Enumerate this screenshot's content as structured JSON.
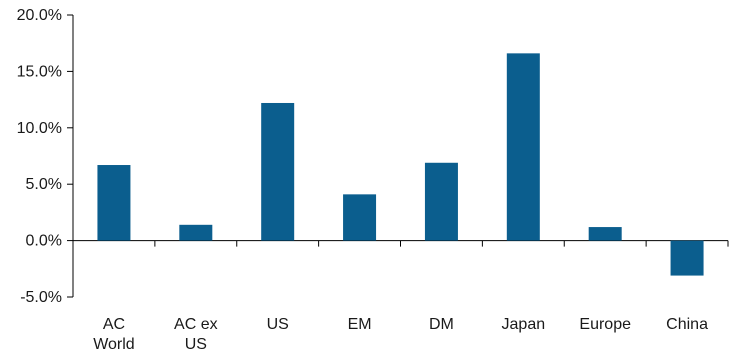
{
  "chart_data": {
    "type": "bar",
    "categories": [
      "AC World",
      "AC ex US",
      "US",
      "EM",
      "DM",
      "Japan",
      "Europe",
      "China"
    ],
    "category_lines": [
      [
        "AC",
        "World"
      ],
      [
        "AC ex",
        "US"
      ],
      [
        "US"
      ],
      [
        "EM"
      ],
      [
        "DM"
      ],
      [
        "Japan"
      ],
      [
        "Europe"
      ],
      [
        "China"
      ]
    ],
    "values": [
      6.7,
      1.4,
      12.2,
      4.1,
      6.9,
      16.6,
      1.2,
      -3.1
    ],
    "ylim": [
      -5,
      20
    ],
    "yticks": [
      -5,
      0,
      5,
      10,
      15,
      20
    ],
    "ytick_labels": [
      "-5.0%",
      "0.0%",
      "5.0%",
      "10.0%",
      "15.0%",
      "20.0%"
    ],
    "title": "",
    "xlabel": "",
    "ylabel": "",
    "grid": false,
    "bar_color": "#0b5e8e",
    "axis_color": "#000000"
  }
}
